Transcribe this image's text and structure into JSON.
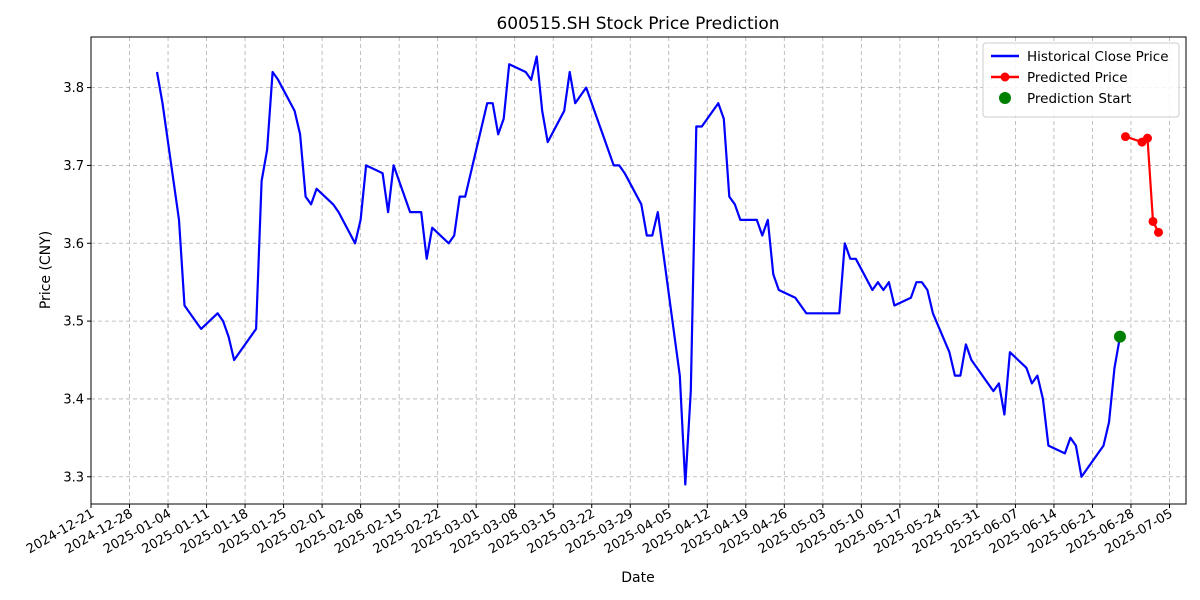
{
  "chart_data": {
    "type": "line",
    "title": "600515.SH Stock Price Prediction",
    "xlabel": "Date",
    "ylabel": "Price (CNY)",
    "xlim": [
      "2024-12-21",
      "2025-07-08"
    ],
    "ylim": [
      3.265,
      3.865
    ],
    "grid": true,
    "legend_position": "top-right",
    "x_ticks": [
      "2024-12-21",
      "2024-12-28",
      "2025-01-04",
      "2025-01-11",
      "2025-01-18",
      "2025-01-25",
      "2025-02-01",
      "2025-02-08",
      "2025-02-15",
      "2025-02-22",
      "2025-03-01",
      "2025-03-08",
      "2025-03-15",
      "2025-03-22",
      "2025-03-29",
      "2025-04-05",
      "2025-04-12",
      "2025-04-19",
      "2025-04-26",
      "2025-05-03",
      "2025-05-10",
      "2025-05-17",
      "2025-05-24",
      "2025-05-31",
      "2025-06-07",
      "2025-06-14",
      "2025-06-21",
      "2025-06-28",
      "2025-07-05"
    ],
    "y_ticks": [
      3.3,
      3.4,
      3.5,
      3.6,
      3.7,
      3.8
    ],
    "series": [
      {
        "name": "Historical Close Price",
        "color": "#0000ff",
        "style": "line",
        "points": [
          [
            "2025-01-02",
            3.82
          ],
          [
            "2025-01-03",
            3.78
          ],
          [
            "2025-01-06",
            3.63
          ],
          [
            "2025-01-07",
            3.52
          ],
          [
            "2025-01-09",
            3.5
          ],
          [
            "2025-01-10",
            3.49
          ],
          [
            "2025-01-13",
            3.51
          ],
          [
            "2025-01-14",
            3.5
          ],
          [
            "2025-01-15",
            3.48
          ],
          [
            "2025-01-16",
            3.45
          ],
          [
            "2025-01-20",
            3.49
          ],
          [
            "2025-01-21",
            3.68
          ],
          [
            "2025-01-22",
            3.72
          ],
          [
            "2025-01-23",
            3.82
          ],
          [
            "2025-01-24",
            3.81
          ],
          [
            "2025-01-27",
            3.77
          ],
          [
            "2025-01-28",
            3.74
          ],
          [
            "2025-01-29",
            3.66
          ],
          [
            "2025-01-30",
            3.65
          ],
          [
            "2025-01-31",
            3.67
          ],
          [
            "2025-02-03",
            3.65
          ],
          [
            "2025-02-04",
            3.64
          ],
          [
            "2025-02-07",
            3.6
          ],
          [
            "2025-02-08",
            3.63
          ],
          [
            "2025-02-09",
            3.7
          ],
          [
            "2025-02-12",
            3.69
          ],
          [
            "2025-02-13",
            3.64
          ],
          [
            "2025-02-14",
            3.7
          ],
          [
            "2025-02-17",
            3.64
          ],
          [
            "2025-02-18",
            3.64
          ],
          [
            "2025-02-19",
            3.64
          ],
          [
            "2025-02-20",
            3.58
          ],
          [
            "2025-02-21",
            3.62
          ],
          [
            "2025-02-24",
            3.6
          ],
          [
            "2025-02-25",
            3.61
          ],
          [
            "2025-02-26",
            3.66
          ],
          [
            "2025-02-27",
            3.66
          ],
          [
            "2025-02-28",
            3.69
          ],
          [
            "2025-03-03",
            3.78
          ],
          [
            "2025-03-04",
            3.78
          ],
          [
            "2025-03-05",
            3.74
          ],
          [
            "2025-03-06",
            3.76
          ],
          [
            "2025-03-07",
            3.83
          ],
          [
            "2025-03-10",
            3.82
          ],
          [
            "2025-03-11",
            3.81
          ],
          [
            "2025-03-12",
            3.84
          ],
          [
            "2025-03-13",
            3.77
          ],
          [
            "2025-03-14",
            3.73
          ],
          [
            "2025-03-17",
            3.77
          ],
          [
            "2025-03-18",
            3.82
          ],
          [
            "2025-03-19",
            3.78
          ],
          [
            "2025-03-20",
            3.79
          ],
          [
            "2025-03-21",
            3.8
          ],
          [
            "2025-03-24",
            3.74
          ],
          [
            "2025-03-25",
            3.72
          ],
          [
            "2025-03-26",
            3.7
          ],
          [
            "2025-03-27",
            3.7
          ],
          [
            "2025-03-28",
            3.69
          ],
          [
            "2025-03-31",
            3.65
          ],
          [
            "2025-04-01",
            3.61
          ],
          [
            "2025-04-02",
            3.61
          ],
          [
            "2025-04-03",
            3.64
          ],
          [
            "2025-04-07",
            3.43
          ],
          [
            "2025-04-08",
            3.29
          ],
          [
            "2025-04-09",
            3.41
          ],
          [
            "2025-04-10",
            3.75
          ],
          [
            "2025-04-11",
            3.75
          ],
          [
            "2025-04-14",
            3.78
          ],
          [
            "2025-04-15",
            3.76
          ],
          [
            "2025-04-16",
            3.66
          ],
          [
            "2025-04-17",
            3.65
          ],
          [
            "2025-04-18",
            3.63
          ],
          [
            "2025-04-21",
            3.63
          ],
          [
            "2025-04-22",
            3.61
          ],
          [
            "2025-04-23",
            3.63
          ],
          [
            "2025-04-24",
            3.56
          ],
          [
            "2025-04-25",
            3.54
          ],
          [
            "2025-04-28",
            3.53
          ],
          [
            "2025-04-29",
            3.52
          ],
          [
            "2025-04-30",
            3.51
          ],
          [
            "2025-05-06",
            3.51
          ],
          [
            "2025-05-07",
            3.6
          ],
          [
            "2025-05-08",
            3.58
          ],
          [
            "2025-05-09",
            3.58
          ],
          [
            "2025-05-12",
            3.54
          ],
          [
            "2025-05-13",
            3.55
          ],
          [
            "2025-05-14",
            3.54
          ],
          [
            "2025-05-15",
            3.55
          ],
          [
            "2025-05-16",
            3.52
          ],
          [
            "2025-05-19",
            3.53
          ],
          [
            "2025-05-20",
            3.55
          ],
          [
            "2025-05-21",
            3.55
          ],
          [
            "2025-05-22",
            3.54
          ],
          [
            "2025-05-23",
            3.51
          ],
          [
            "2025-05-26",
            3.46
          ],
          [
            "2025-05-27",
            3.43
          ],
          [
            "2025-05-28",
            3.43
          ],
          [
            "2025-05-29",
            3.47
          ],
          [
            "2025-05-30",
            3.45
          ],
          [
            "2025-06-03",
            3.41
          ],
          [
            "2025-06-04",
            3.42
          ],
          [
            "2025-06-05",
            3.38
          ],
          [
            "2025-06-06",
            3.46
          ],
          [
            "2025-06-09",
            3.44
          ],
          [
            "2025-06-10",
            3.42
          ],
          [
            "2025-06-11",
            3.43
          ],
          [
            "2025-06-12",
            3.4
          ],
          [
            "2025-06-13",
            3.34
          ],
          [
            "2025-06-16",
            3.33
          ],
          [
            "2025-06-17",
            3.35
          ],
          [
            "2025-06-18",
            3.34
          ],
          [
            "2025-06-19",
            3.3
          ],
          [
            "2025-06-23",
            3.34
          ],
          [
            "2025-06-24",
            3.37
          ],
          [
            "2025-06-25",
            3.44
          ],
          [
            "2025-06-26",
            3.48
          ]
        ]
      },
      {
        "name": "Predicted Price",
        "color": "#ff0000",
        "style": "line-markers",
        "points": [
          [
            "2025-06-27",
            3.737
          ],
          [
            "2025-06-30",
            3.73
          ],
          [
            "2025-07-01",
            3.735
          ],
          [
            "2025-07-02",
            3.628
          ],
          [
            "2025-07-03",
            3.614
          ]
        ]
      },
      {
        "name": "Prediction Start",
        "color": "#008000",
        "style": "marker",
        "points": [
          [
            "2025-06-26",
            3.48
          ]
        ]
      }
    ]
  }
}
